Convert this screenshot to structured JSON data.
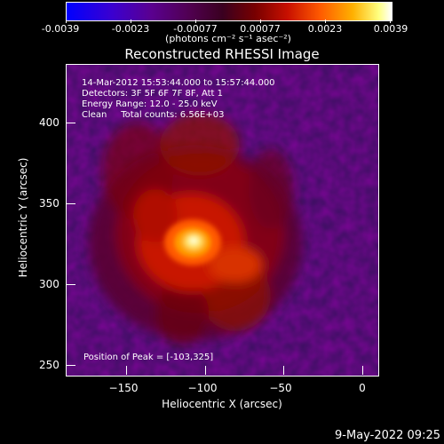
{
  "colorbar": {
    "ticks": [
      "-0.0039",
      "-0.0023",
      "-0.00077",
      "0.00077",
      "0.0023",
      "0.0039"
    ],
    "unit": "(photons cm⁻² s⁻¹ asec⁻²)",
    "colors": [
      "#0000ff",
      "#500050",
      "#c81000",
      "#ffb000",
      "#ffffff"
    ]
  },
  "title": "Reconstructed RHESSI Image",
  "info": {
    "time_range": "14-Mar-2012 15:53:44.000 to 15:57:44.000",
    "detectors": "Detectors: 3F 5F 6F 7F 8F, Att 1",
    "energy_range": "Energy Range: 12.0 - 25.0 keV",
    "clean_counts": "Clean     Total counts: 6.56E+03"
  },
  "peak_label": "Position of Peak = [-103,325]",
  "axes": {
    "x_label": "Heliocentric X (arcsec)",
    "y_label": "Heliocentric Y (arcsec)",
    "x_ticks": [
      "−150",
      "−100",
      "−50",
      "0"
    ],
    "y_ticks": [
      "400",
      "350",
      "300",
      "250"
    ]
  },
  "footer": "9-May-2022 09:25"
}
